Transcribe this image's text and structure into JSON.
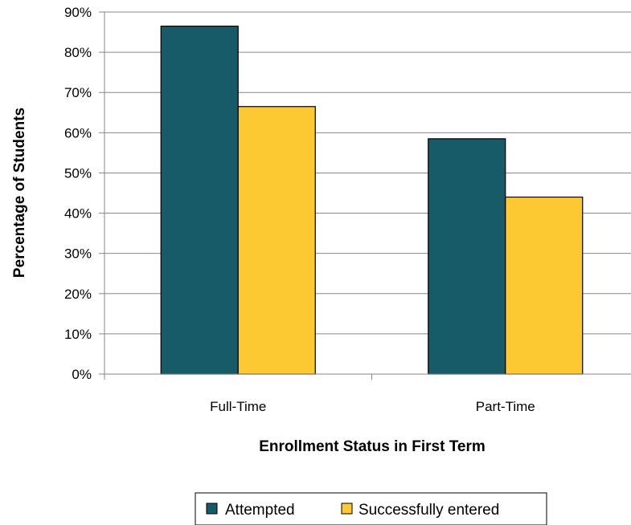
{
  "chart_data": {
    "type": "bar",
    "title": "",
    "xlabel": "Enrollment Status in First Term",
    "ylabel": "Percentage of Students",
    "categories": [
      "Full-Time",
      "Part-Time"
    ],
    "series": [
      {
        "name": "Attempted",
        "values": [
          86.5,
          58.5
        ],
        "color": "#175A68"
      },
      {
        "name": "Successfully entered",
        "values": [
          66.5,
          44.0
        ],
        "color": "#FDC933"
      }
    ],
    "ylim": [
      0,
      90
    ],
    "yticks": [
      0,
      10,
      20,
      30,
      40,
      50,
      60,
      70,
      80,
      90
    ],
    "ytick_labels": [
      "0%",
      "10%",
      "20%",
      "30%",
      "40%",
      "50%",
      "60%",
      "70%",
      "80%",
      "90%"
    ],
    "grid": true,
    "legend_position": "bottom"
  }
}
